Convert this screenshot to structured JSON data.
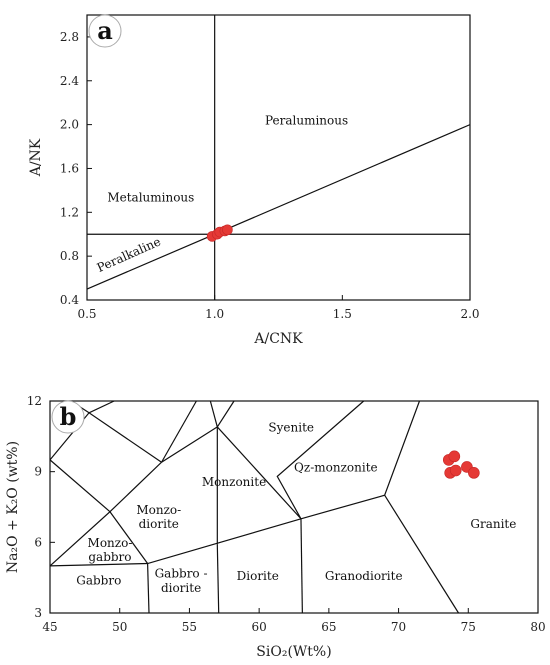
{
  "chart_data": [
    {
      "type": "scatter",
      "panel": "a",
      "title": "",
      "xlabel": "A/CNK",
      "ylabel": "A/NK",
      "xlim": [
        0.5,
        2.0
      ],
      "ylim": [
        0.4,
        3.0
      ],
      "xticks": [
        "0.5",
        "1.0",
        "1.5",
        "2.0"
      ],
      "yticks": [
        "0.4",
        "0.8",
        "1.2",
        "1.6",
        "2.0",
        "2.4",
        "2.8"
      ],
      "fields": [
        {
          "label": "Metaluminous",
          "x": 0.75,
          "y": 1.3
        },
        {
          "label": "Peraluminous",
          "x": 1.36,
          "y": 2.0
        },
        {
          "label": "Peralkaline",
          "x": 0.67,
          "y": 0.78,
          "rotate": -24
        }
      ],
      "lines": [
        {
          "x": [
            1.0,
            1.0
          ],
          "y": [
            0.4,
            3.0
          ]
        },
        {
          "x": [
            0.5,
            2.0
          ],
          "y": [
            1.0,
            1.0
          ]
        },
        {
          "x": [
            0.5,
            2.0
          ],
          "y": [
            0.5,
            2.0
          ]
        }
      ],
      "points": [
        {
          "x": 0.99,
          "y": 0.98
        },
        {
          "x": 1.01,
          "y": 1.0
        },
        {
          "x": 1.02,
          "y": 1.02
        },
        {
          "x": 1.04,
          "y": 1.03
        },
        {
          "x": 1.05,
          "y": 1.04
        }
      ],
      "point_color": "#e53935"
    },
    {
      "type": "scatter",
      "panel": "b",
      "title": "",
      "xlabel": "SiO₂(Wt%)",
      "ylabel": "Na₂O + K₂O (wt%)",
      "xlim": [
        45,
        80
      ],
      "ylim": [
        3,
        12
      ],
      "xticks": [
        "45",
        "50",
        "55",
        "60",
        "65",
        "70",
        "75",
        "80"
      ],
      "yticks": [
        "3",
        "6",
        "9",
        "12"
      ],
      "fields": [
        {
          "label": "Syenite",
          "x": [
            62.3
          ],
          "y": 10.7
        },
        {
          "label": "Qz-monzonite",
          "x": [
            65.5
          ],
          "y": 9.0
        },
        {
          "label": "Monzonite",
          "x": [
            58.2
          ],
          "y": 8.4
        },
        {
          "label": "Monzo-",
          "x": [
            52.8
          ],
          "y": 7.2
        },
        {
          "label": "diorite",
          "x": [
            52.8
          ],
          "y": 6.6
        },
        {
          "label": "Monzo-",
          "x": [
            49.3
          ],
          "y": 5.8
        },
        {
          "label": "gabbro",
          "x": [
            49.3
          ],
          "y": 5.2
        },
        {
          "label": "Granite",
          "x": [
            76.8
          ],
          "y": 6.6
        },
        {
          "label": "Gabbro",
          "x": [
            48.5
          ],
          "y": 4.2
        },
        {
          "label": "Gabbro -",
          "x": [
            54.4
          ],
          "y": 4.5
        },
        {
          "label": "diorite",
          "x": [
            54.4
          ],
          "y": 3.9
        },
        {
          "label": "Diorite",
          "x": [
            59.9
          ],
          "y": 4.4
        },
        {
          "label": "Granodiorite",
          "x": [
            67.5
          ],
          "y": 4.4
        }
      ],
      "lines": [
        {
          "x": [
            45,
            52,
            63,
            69,
            71.5
          ],
          "y": [
            5,
            5.1,
            7,
            8,
            12
          ]
        },
        {
          "x": [
            52,
            52.1
          ],
          "y": [
            5.1,
            3
          ]
        },
        {
          "x": [
            57,
            57.1
          ],
          "y": [
            5.9,
            3
          ]
        },
        {
          "x": [
            63,
            63.1
          ],
          "y": [
            7,
            3
          ]
        },
        {
          "x": [
            69,
            74.3
          ],
          "y": [
            8,
            3
          ]
        },
        {
          "x": [
            45,
            49.3,
            45
          ],
          "y": [
            5,
            7.3,
            9.5
          ]
        },
        {
          "x": [
            49.3,
            52
          ],
          "y": [
            7.3,
            5.1
          ]
        },
        {
          "x": [
            49.3,
            53,
            57,
            63,
            61.3,
            67.5
          ],
          "y": [
            7.3,
            9.4,
            10.9,
            7,
            8.8,
            12
          ]
        },
        {
          "x": [
            57,
            57
          ],
          "y": [
            10.9,
            5.9
          ]
        },
        {
          "x": [
            53,
            55.5
          ],
          "y": [
            9.4,
            12
          ]
        },
        {
          "x": [
            57,
            58.2
          ],
          "y": [
            10.9,
            12
          ]
        },
        {
          "x": [
            57,
            56.5
          ],
          "y": [
            10.9,
            12
          ]
        },
        {
          "x": [
            45,
            47.8,
            53
          ],
          "y": [
            9.5,
            11.5,
            9.4
          ]
        },
        {
          "x": [
            47.8,
            46.5
          ],
          "y": [
            11.5,
            12
          ]
        },
        {
          "x": [
            47.8,
            49.6
          ],
          "y": [
            11.5,
            12
          ]
        }
      ],
      "points": [
        {
          "x": 73.6,
          "y": 9.5
        },
        {
          "x": 74.0,
          "y": 9.65
        },
        {
          "x": 73.7,
          "y": 8.95
        },
        {
          "x": 74.1,
          "y": 9.05
        },
        {
          "x": 74.9,
          "y": 9.2
        },
        {
          "x": 75.4,
          "y": 8.95
        }
      ],
      "point_color": "#e53935"
    }
  ]
}
